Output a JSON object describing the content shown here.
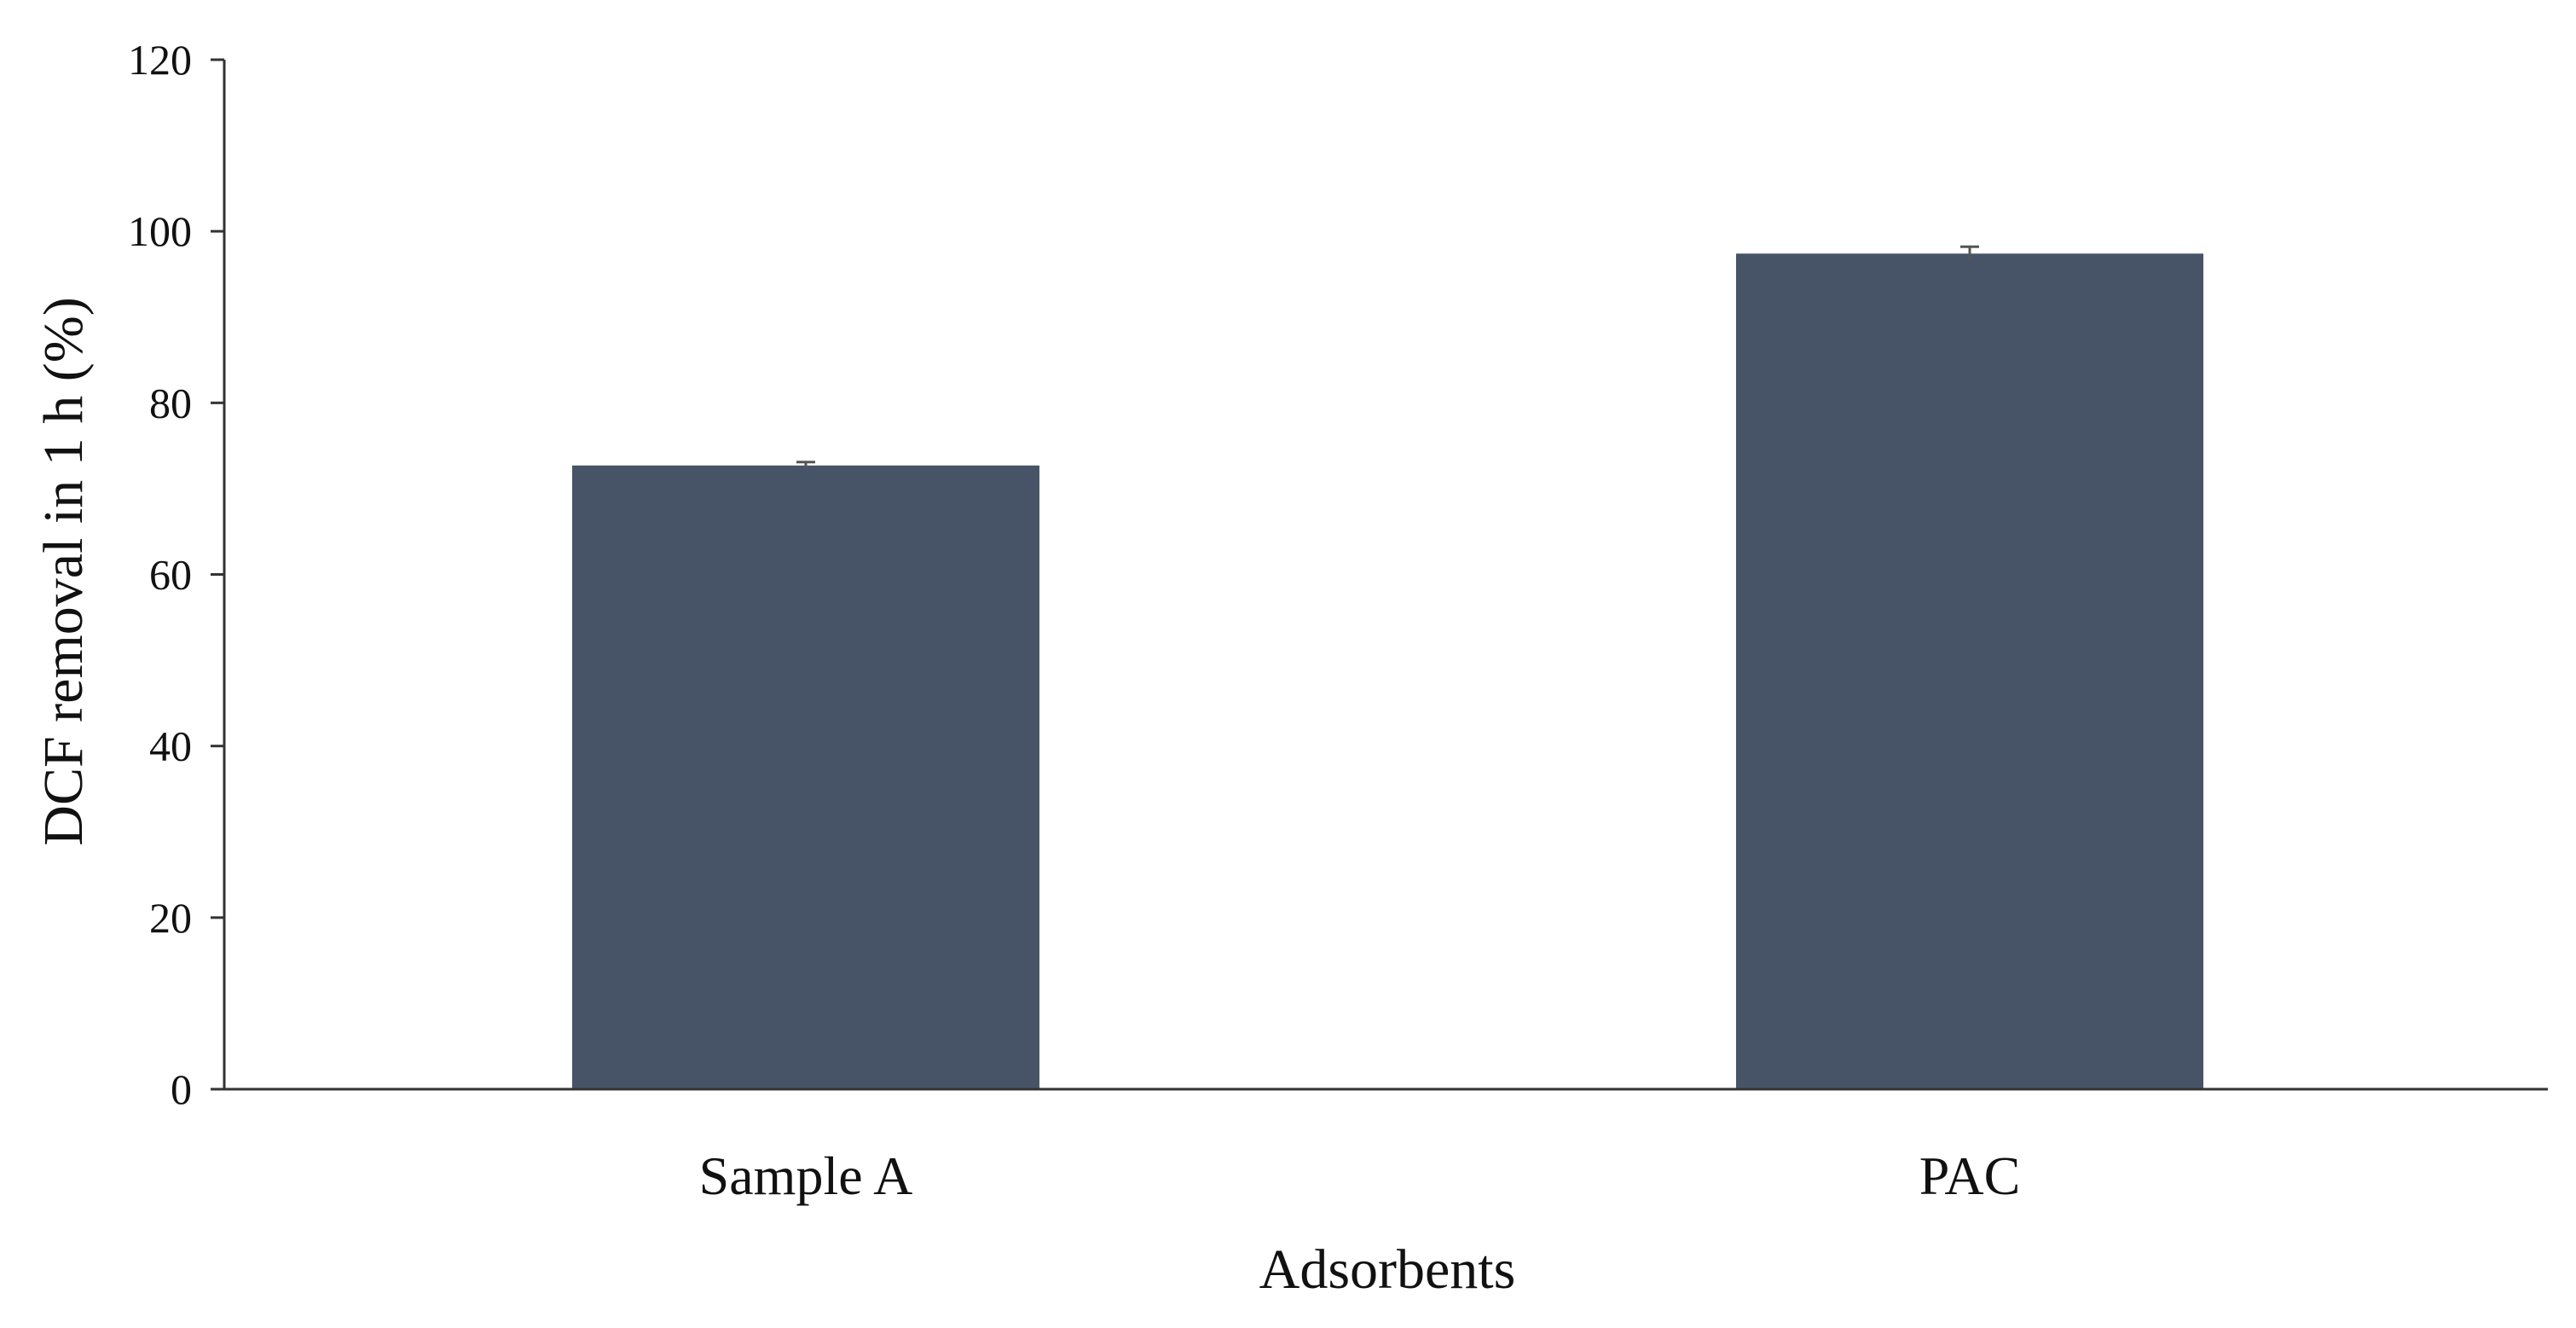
{
  "chart_data": {
    "type": "bar",
    "title": "",
    "xlabel": "Adsorbents",
    "ylabel": "DCF removal in 1 h (%)",
    "categories": [
      "Sample A",
      "PAC"
    ],
    "values": [
      72.7,
      97.4
    ],
    "error": [
      0.4,
      0.8
    ],
    "ylim": [
      0,
      120
    ],
    "yticks": [
      0,
      20,
      40,
      60,
      80,
      100,
      120
    ],
    "grid": false,
    "legend": "none",
    "colors": {
      "bar": "#475467",
      "axis": "#333333",
      "error_bar": "#555555"
    }
  }
}
